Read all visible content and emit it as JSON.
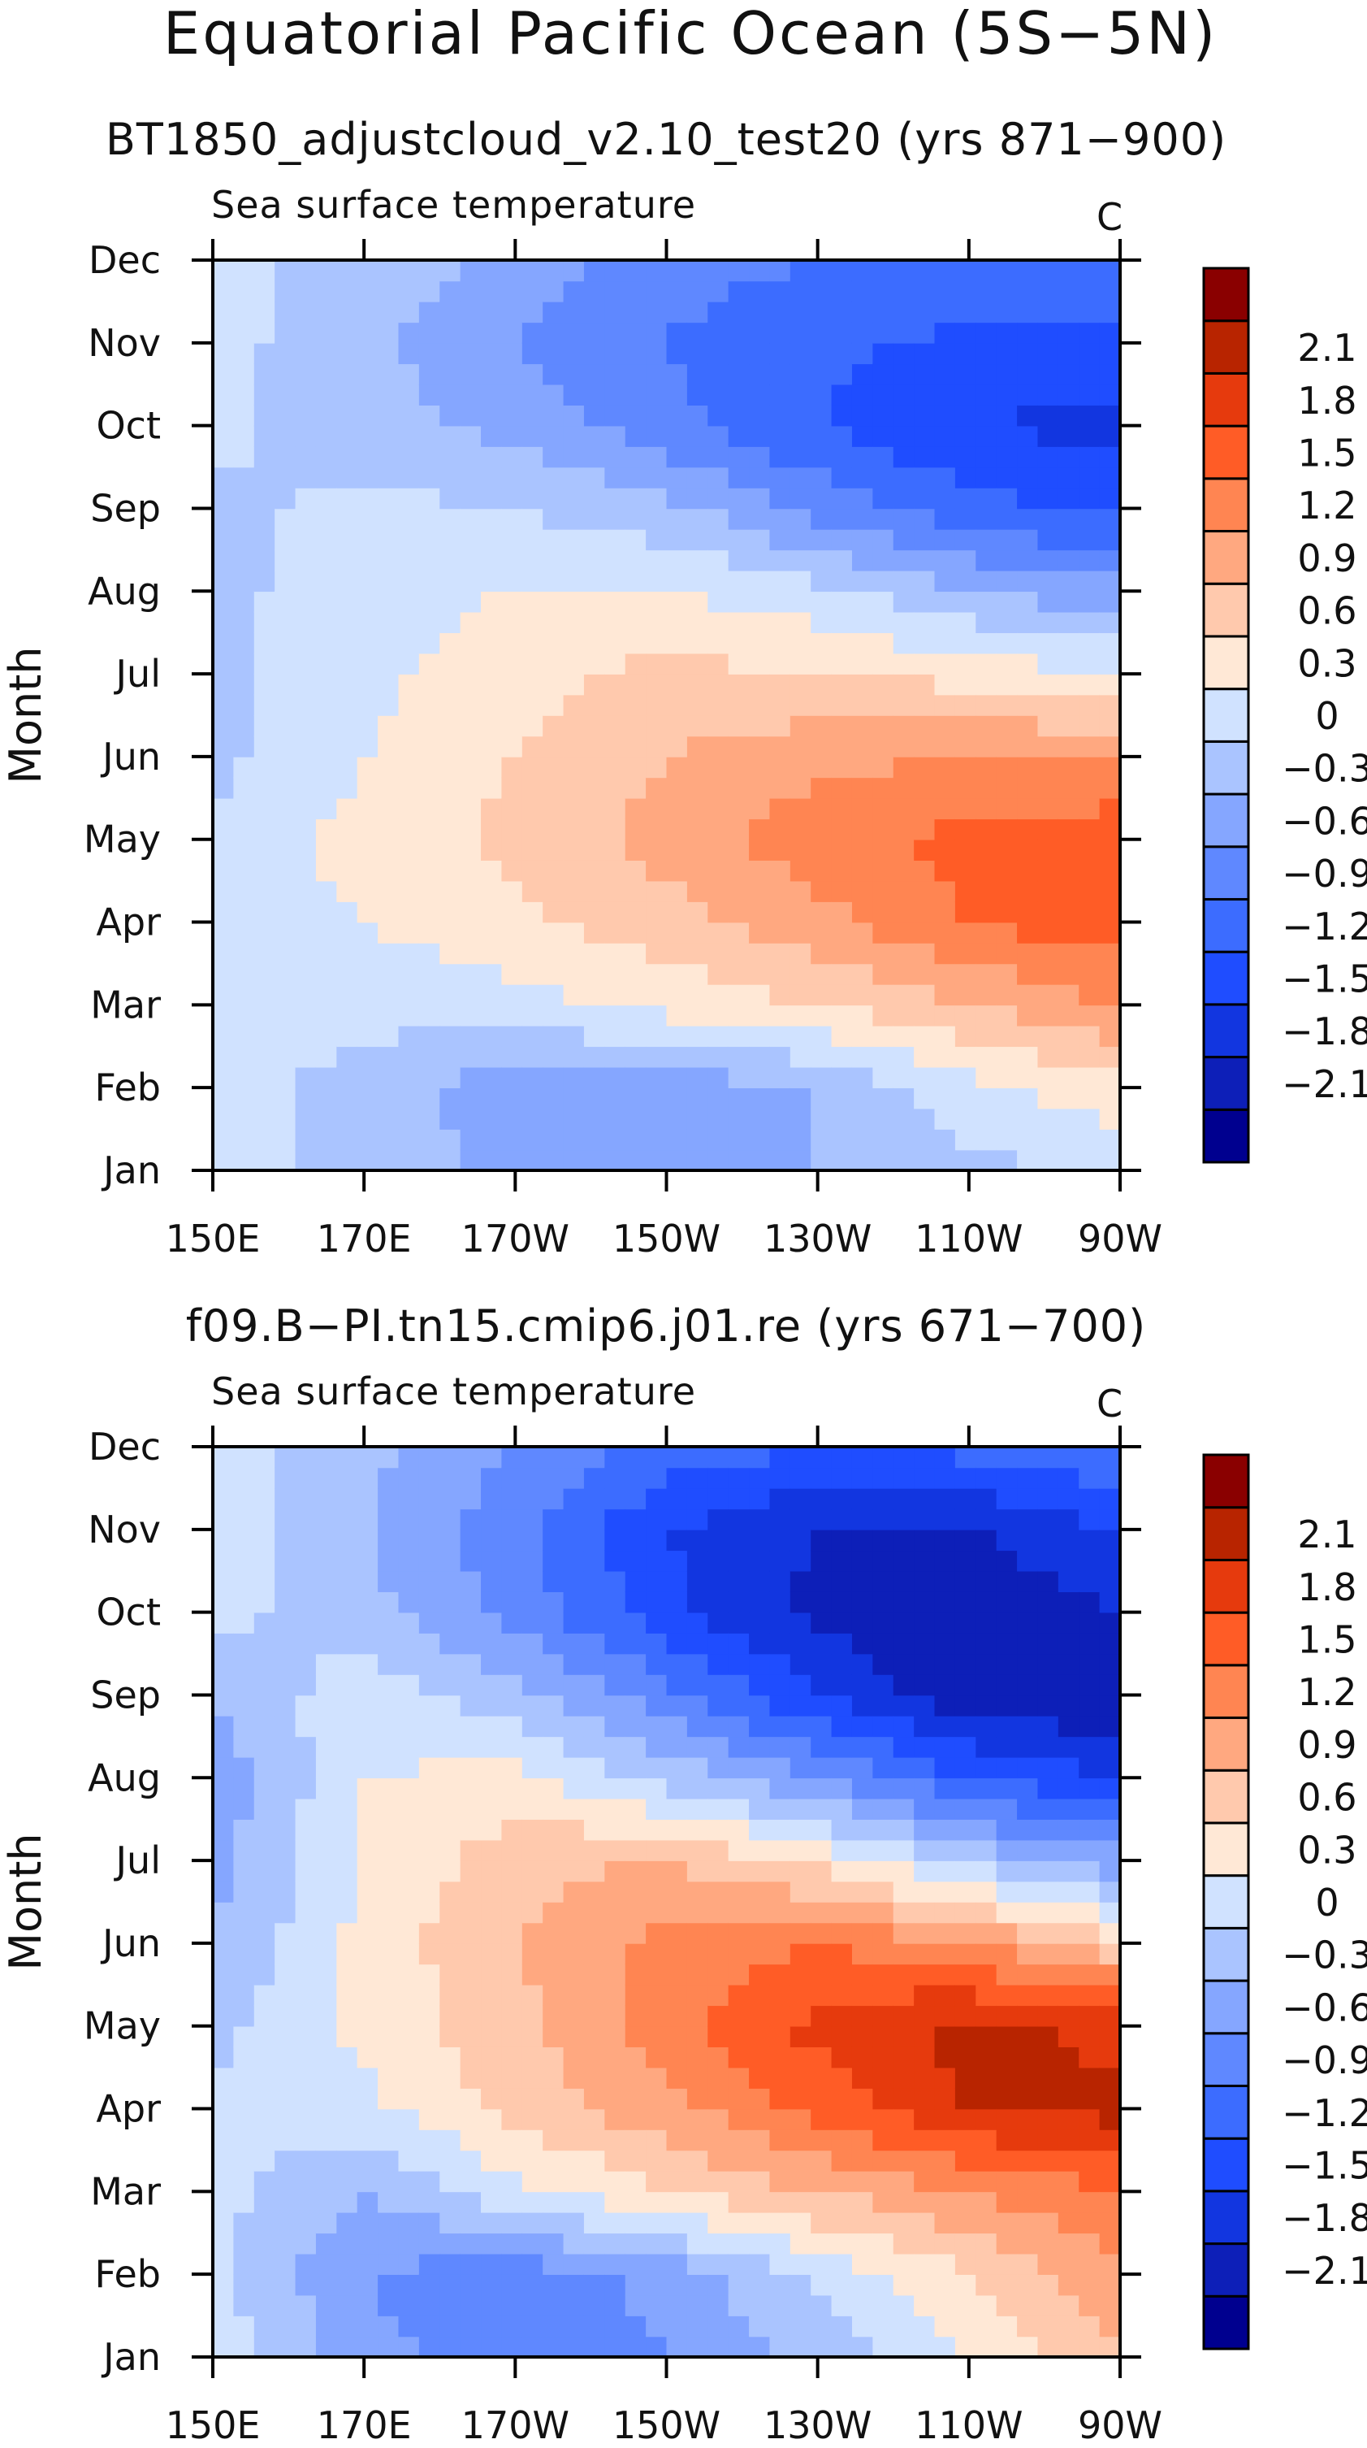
{
  "title": "Equatorial Pacific Ocean (5S−5N)",
  "colors": {
    "levels": [
      "#00008f",
      "#0d1fb8",
      "#1236e0",
      "#1f4dff",
      "#3c6cff",
      "#5f88ff",
      "#85a6ff",
      "#aac4ff",
      "#d0e2ff",
      "#ffe8d6",
      "#ffc9ad",
      "#ffa880",
      "#ff8552",
      "#ff5c26",
      "#e63a0d",
      "#b82400",
      "#8a0000"
    ]
  },
  "chart_data": [
    {
      "type": "heatmap",
      "title": "BT1850_adjustcloud_v2.10_test20 (yrs 871−900)",
      "variable": "Sea surface temperature",
      "units": "C",
      "xlabel": "",
      "ylabel": "Month",
      "x": [
        "150E",
        "170E",
        "170W",
        "150W",
        "130W",
        "110W",
        "90W"
      ],
      "y": [
        "Jan",
        "Feb",
        "Mar",
        "Apr",
        "May",
        "Jun",
        "Jul",
        "Aug",
        "Sep",
        "Oct",
        "Nov",
        "Dec"
      ],
      "colorbar_labels": [
        "2.1",
        "1.8",
        "1.5",
        "1.2",
        "0.9",
        "0.6",
        "0.3",
        "0",
        "−0.3",
        "−0.6",
        "−0.9",
        "−1.2",
        "−1.5",
        "−1.8",
        "−2.1"
      ],
      "values": [
        [
          0.1,
          -0.1,
          -0.4,
          -0.5,
          -0.3,
          -0.1,
          0.1
        ],
        [
          0.1,
          -0.1,
          -0.5,
          -0.5,
          -0.3,
          0.2,
          0.5
        ],
        [
          0.2,
          0.1,
          0.2,
          0.4,
          0.6,
          0.9,
          1.2
        ],
        [
          0.2,
          0.3,
          0.5,
          0.8,
          1.1,
          1.5,
          1.7
        ],
        [
          0.1,
          0.4,
          0.7,
          1.0,
          1.4,
          1.6,
          1.7
        ],
        [
          -0.1,
          0.3,
          0.6,
          0.9,
          1.1,
          1.2,
          1.2
        ],
        [
          -0.1,
          0.2,
          0.5,
          0.7,
          0.6,
          0.5,
          0.3
        ],
        [
          -0.1,
          0.2,
          0.3,
          0.3,
          0.1,
          -0.3,
          -0.5
        ],
        [
          -0.1,
          0.1,
          0.0,
          -0.2,
          -0.7,
          -1.1,
          -1.3
        ],
        [
          0.1,
          -0.2,
          -0.4,
          -0.8,
          -1.2,
          -1.5,
          -1.6
        ],
        [
          0.1,
          -0.2,
          -0.6,
          -0.9,
          -1.1,
          -1.3,
          -1.3
        ],
        [
          0.1,
          -0.1,
          -0.4,
          -0.8,
          -0.9,
          -0.9,
          -0.9
        ]
      ]
    },
    {
      "type": "heatmap",
      "title": "f09.B−PI.tn15.cmip6.j01.re (yrs 671−700)",
      "variable": "Sea surface temperature",
      "units": "C",
      "xlabel": "",
      "ylabel": "Month",
      "x": [
        "150E",
        "170E",
        "170W",
        "150W",
        "130W",
        "110W",
        "90W"
      ],
      "y": [
        "Jan",
        "Feb",
        "Mar",
        "Apr",
        "May",
        "Jun",
        "Jul",
        "Aug",
        "Sep",
        "Oct",
        "Nov",
        "Dec"
      ],
      "colorbar_labels": [
        "2.1",
        "1.8",
        "1.5",
        "1.2",
        "0.9",
        "0.6",
        "0.3",
        "0",
        "−0.3",
        "−0.6",
        "−0.9",
        "−1.2",
        "−1.5",
        "−1.8",
        "−2.1"
      ],
      "values": [
        [
          0.2,
          -0.5,
          -0.8,
          -0.6,
          -0.2,
          0.3,
          0.9
        ],
        [
          0.1,
          -0.6,
          -0.8,
          -0.5,
          0.1,
          0.6,
          1.1
        ],
        [
          0.1,
          -0.3,
          0.2,
          0.6,
          0.9,
          1.2,
          1.5
        ],
        [
          0.1,
          0.2,
          0.7,
          1.1,
          1.6,
          2.1,
          2.2
        ],
        [
          -0.1,
          0.4,
          0.8,
          1.4,
          1.9,
          2.2,
          2.0
        ],
        [
          -0.3,
          0.4,
          0.9,
          1.3,
          1.5,
          1.2,
          0.7
        ],
        [
          -0.4,
          0.3,
          0.8,
          0.9,
          0.5,
          -0.1,
          -0.5
        ],
        [
          -0.5,
          0.3,
          0.4,
          -0.1,
          -0.6,
          -1.2,
          -1.5
        ],
        [
          -0.3,
          0.2,
          -0.2,
          -0.8,
          -1.5,
          -2.0,
          -2.1
        ],
        [
          0.1,
          -0.2,
          -0.7,
          -1.4,
          -1.9,
          -2.1,
          -1.8
        ],
        [
          0.2,
          -0.3,
          -0.8,
          -1.5,
          -1.8,
          -1.8,
          -1.5
        ],
        [
          0.1,
          -0.2,
          -0.6,
          -1.0,
          -1.2,
          -1.1,
          -0.9
        ]
      ]
    }
  ]
}
